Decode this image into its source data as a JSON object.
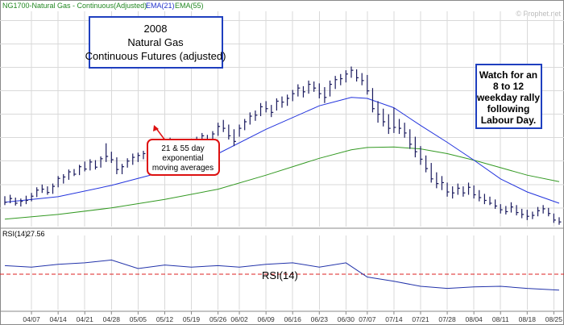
{
  "header": {
    "symbol_label": "NG1700-Natural Gas - Continuous(Adjusted)",
    "ema21_label": "EMA(21)",
    "ema55_label": "EMA(55)",
    "watermark": "© Prophet.net"
  },
  "rsi_header": {
    "label": "RSI(14)",
    "value": "27.56"
  },
  "annotations": {
    "title_box": [
      "2008",
      "Natural Gas",
      "Continuous Futures (adjusted)"
    ],
    "ma_box": [
      "21 & 55 day",
      "exponential",
      "moving averages"
    ],
    "rally_box": [
      "Watch for an",
      "8 to 12",
      "weekday rally",
      "following",
      "Labour Day."
    ],
    "rsi_label": "RSI(14)"
  },
  "colors": {
    "price_bars": "#1a1a5e",
    "ema21": "#2233dd",
    "ema55": "#339922",
    "rsi_line": "#2233aa",
    "rsi_midline": "#dd2222",
    "title_box_border": "#1f3fbf",
    "ma_box_border": "#dd1111",
    "rally_box_border": "#1f3fbf",
    "text_green": "#228822",
    "text_blue": "#2233cc",
    "text_dark": "#000000"
  },
  "chart_data": [
    {
      "type": "ohlc",
      "title": "",
      "xlabel": "",
      "ylabel": "",
      "categories": [
        "04/07",
        "04/14",
        "04/21",
        "04/28",
        "05/05",
        "05/12",
        "05/19",
        "05/26",
        "06/02",
        "06/09",
        "06/16",
        "06/23",
        "06/30",
        "07/07",
        "07/14",
        "07/21",
        "07/28",
        "08/04",
        "08/11",
        "08/18",
        "08/25"
      ],
      "ylim": [
        36,
        82
      ],
      "grid": true,
      "bars": [
        {
          "date": "03/31",
          "high": 42.5,
          "low": 40.6,
          "close": 41.2
        },
        {
          "date": "04/01",
          "high": 42.8,
          "low": 41.0,
          "close": 42.0
        },
        {
          "date": "04/02",
          "high": 42.2,
          "low": 40.5,
          "close": 41.0
        },
        {
          "date": "04/03",
          "high": 42.0,
          "low": 40.3,
          "close": 41.4
        },
        {
          "date": "04/04",
          "high": 42.6,
          "low": 40.8,
          "close": 41.6
        },
        {
          "date": "04/07",
          "high": 43.2,
          "low": 41.4,
          "close": 42.5
        },
        {
          "date": "04/08",
          "high": 44.4,
          "low": 42.3,
          "close": 43.8
        },
        {
          "date": "04/09",
          "high": 45.0,
          "low": 43.2,
          "close": 44.0
        },
        {
          "date": "04/10",
          "high": 44.6,
          "low": 42.8,
          "close": 43.3
        },
        {
          "date": "04/11",
          "high": 45.2,
          "low": 43.0,
          "close": 44.6
        },
        {
          "date": "04/14",
          "high": 46.8,
          "low": 44.4,
          "close": 46.3
        },
        {
          "date": "04/15",
          "high": 47.2,
          "low": 45.2,
          "close": 46.6
        },
        {
          "date": "04/16",
          "high": 48.2,
          "low": 46.0,
          "close": 47.7
        },
        {
          "date": "04/17",
          "high": 48.3,
          "low": 46.8,
          "close": 47.2
        },
        {
          "date": "04/18",
          "high": 49.2,
          "low": 47.0,
          "close": 48.8
        },
        {
          "date": "04/21",
          "high": 49.9,
          "low": 47.8,
          "close": 48.3
        },
        {
          "date": "04/22",
          "high": 50.4,
          "low": 48.0,
          "close": 49.8
        },
        {
          "date": "04/23",
          "high": 50.2,
          "low": 48.2,
          "close": 48.7
        },
        {
          "date": "04/24",
          "high": 51.0,
          "low": 48.6,
          "close": 50.5
        },
        {
          "date": "04/25",
          "high": 53.8,
          "low": 49.8,
          "close": 51.0
        },
        {
          "date": "04/28",
          "high": 52.0,
          "low": 49.6,
          "close": 50.3
        },
        {
          "date": "04/29",
          "high": 50.8,
          "low": 47.2,
          "close": 48.2
        },
        {
          "date": "04/30",
          "high": 49.4,
          "low": 47.2,
          "close": 48.8
        },
        {
          "date": "05/01",
          "high": 50.6,
          "low": 48.6,
          "close": 50.0
        },
        {
          "date": "05/02",
          "high": 51.6,
          "low": 49.2,
          "close": 50.8
        },
        {
          "date": "05/05",
          "high": 51.8,
          "low": 49.8,
          "close": 51.2
        },
        {
          "date": "05/06",
          "high": 52.2,
          "low": 50.4,
          "close": 51.6
        },
        {
          "date": "05/07",
          "high": 53.0,
          "low": 51.0,
          "close": 52.5
        },
        {
          "date": "05/08",
          "high": 53.2,
          "low": 51.4,
          "close": 52.2
        },
        {
          "date": "05/09",
          "high": 53.8,
          "low": 51.6,
          "close": 53.3
        },
        {
          "date": "05/12",
          "high": 54.2,
          "low": 52.3,
          "close": 53.6
        },
        {
          "date": "05/13",
          "high": 55.0,
          "low": 52.8,
          "close": 53.8
        },
        {
          "date": "05/14",
          "high": 54.6,
          "low": 52.4,
          "close": 53.0
        },
        {
          "date": "05/15",
          "high": 53.8,
          "low": 49.4,
          "close": 50.8
        },
        {
          "date": "05/16",
          "high": 52.2,
          "low": 49.8,
          "close": 51.6
        },
        {
          "date": "05/19",
          "high": 53.8,
          "low": 51.2,
          "close": 53.2
        },
        {
          "date": "05/20",
          "high": 55.2,
          "low": 52.8,
          "close": 54.6
        },
        {
          "date": "05/21",
          "high": 56.0,
          "low": 54.0,
          "close": 55.4
        },
        {
          "date": "05/22",
          "high": 55.6,
          "low": 53.8,
          "close": 54.6
        },
        {
          "date": "05/23",
          "high": 56.4,
          "low": 54.2,
          "close": 55.8
        },
        {
          "date": "05/27",
          "high": 58.2,
          "low": 55.4,
          "close": 57.4
        },
        {
          "date": "05/28",
          "high": 58.8,
          "low": 56.2,
          "close": 57.0
        },
        {
          "date": "05/29",
          "high": 57.8,
          "low": 54.6,
          "close": 55.4
        },
        {
          "date": "05/30",
          "high": 56.8,
          "low": 53.2,
          "close": 54.2
        },
        {
          "date": "06/02",
          "high": 57.8,
          "low": 55.2,
          "close": 57.0
        },
        {
          "date": "06/03",
          "high": 59.0,
          "low": 56.6,
          "close": 58.4
        },
        {
          "date": "06/04",
          "high": 60.4,
          "low": 57.8,
          "close": 59.6
        },
        {
          "date": "06/05",
          "high": 60.8,
          "low": 58.6,
          "close": 59.8
        },
        {
          "date": "06/06",
          "high": 62.4,
          "low": 59.6,
          "close": 61.6
        },
        {
          "date": "06/09",
          "high": 62.8,
          "low": 60.4,
          "close": 61.2
        },
        {
          "date": "06/10",
          "high": 62.0,
          "low": 59.4,
          "close": 60.4
        },
        {
          "date": "06/11",
          "high": 63.4,
          "low": 60.8,
          "close": 62.8
        },
        {
          "date": "06/12",
          "high": 63.8,
          "low": 61.4,
          "close": 62.6
        },
        {
          "date": "06/13",
          "high": 64.2,
          "low": 61.8,
          "close": 63.4
        },
        {
          "date": "06/16",
          "high": 65.2,
          "low": 62.8,
          "close": 64.4
        },
        {
          "date": "06/17",
          "high": 66.4,
          "low": 63.8,
          "close": 65.6
        },
        {
          "date": "06/18",
          "high": 66.0,
          "low": 63.6,
          "close": 64.8
        },
        {
          "date": "06/19",
          "high": 67.2,
          "low": 64.4,
          "close": 66.4
        },
        {
          "date": "06/20",
          "high": 67.0,
          "low": 64.8,
          "close": 65.6
        },
        {
          "date": "06/23",
          "high": 66.6,
          "low": 63.4,
          "close": 64.4
        },
        {
          "date": "06/24",
          "high": 65.8,
          "low": 62.4,
          "close": 63.6
        },
        {
          "date": "06/25",
          "high": 67.2,
          "low": 63.8,
          "close": 66.4
        },
        {
          "date": "06/26",
          "high": 68.2,
          "low": 65.4,
          "close": 67.4
        },
        {
          "date": "06/27",
          "high": 68.6,
          "low": 66.2,
          "close": 67.6
        },
        {
          "date": "06/30",
          "high": 69.4,
          "low": 66.8,
          "close": 68.6
        },
        {
          "date": "07/01",
          "high": 70.2,
          "low": 67.8,
          "close": 69.4
        },
        {
          "date": "07/02",
          "high": 69.6,
          "low": 67.0,
          "close": 67.8
        },
        {
          "date": "07/03",
          "high": 68.8,
          "low": 66.2,
          "close": 67.2
        },
        {
          "date": "07/07",
          "high": 68.4,
          "low": 64.2,
          "close": 65.0
        },
        {
          "date": "07/08",
          "high": 65.6,
          "low": 60.4,
          "close": 61.2
        },
        {
          "date": "07/09",
          "high": 62.8,
          "low": 58.2,
          "close": 60.0
        },
        {
          "date": "07/10",
          "high": 61.2,
          "low": 57.4,
          "close": 58.4
        },
        {
          "date": "07/11",
          "high": 60.0,
          "low": 55.8,
          "close": 57.0
        },
        {
          "date": "07/14",
          "high": 61.4,
          "low": 56.0,
          "close": 57.2
        },
        {
          "date": "07/15",
          "high": 59.0,
          "low": 55.8,
          "close": 57.0
        },
        {
          "date": "07/16",
          "high": 58.2,
          "low": 55.0,
          "close": 56.0
        },
        {
          "date": "07/17",
          "high": 56.8,
          "low": 52.6,
          "close": 53.6
        },
        {
          "date": "07/18",
          "high": 55.2,
          "low": 50.8,
          "close": 52.0
        },
        {
          "date": "07/21",
          "high": 53.2,
          "low": 49.2,
          "close": 50.4
        },
        {
          "date": "07/22",
          "high": 51.2,
          "low": 47.6,
          "close": 48.4
        },
        {
          "date": "07/23",
          "high": 49.6,
          "low": 45.4,
          "close": 46.2
        },
        {
          "date": "07/24",
          "high": 47.6,
          "low": 44.2,
          "close": 45.2
        },
        {
          "date": "07/25",
          "high": 46.8,
          "low": 43.8,
          "close": 45.4
        },
        {
          "date": "07/28",
          "high": 45.4,
          "low": 42.4,
          "close": 43.4
        },
        {
          "date": "07/29",
          "high": 44.6,
          "low": 42.0,
          "close": 43.2
        },
        {
          "date": "07/30",
          "high": 45.2,
          "low": 42.8,
          "close": 44.2
        },
        {
          "date": "07/31",
          "high": 44.6,
          "low": 42.4,
          "close": 43.2
        },
        {
          "date": "08/01",
          "high": 45.4,
          "low": 42.8,
          "close": 44.4
        },
        {
          "date": "08/04",
          "high": 44.8,
          "low": 42.0,
          "close": 42.8
        },
        {
          "date": "08/05",
          "high": 43.8,
          "low": 41.4,
          "close": 42.2
        },
        {
          "date": "08/06",
          "high": 43.0,
          "low": 40.8,
          "close": 41.6
        },
        {
          "date": "08/07",
          "high": 42.4,
          "low": 40.6,
          "close": 41.0
        },
        {
          "date": "08/08",
          "high": 41.8,
          "low": 39.8,
          "close": 40.4
        },
        {
          "date": "08/11",
          "high": 40.8,
          "low": 38.8,
          "close": 39.6
        },
        {
          "date": "08/12",
          "high": 40.4,
          "low": 38.6,
          "close": 39.2
        },
        {
          "date": "08/13",
          "high": 41.2,
          "low": 39.0,
          "close": 40.2
        },
        {
          "date": "08/14",
          "high": 40.6,
          "low": 38.4,
          "close": 39.0
        },
        {
          "date": "08/15",
          "high": 39.8,
          "low": 37.8,
          "close": 38.6
        },
        {
          "date": "08/18",
          "high": 39.6,
          "low": 37.4,
          "close": 38.2
        },
        {
          "date": "08/19",
          "high": 39.2,
          "low": 37.6,
          "close": 38.4
        },
        {
          "date": "08/20",
          "high": 40.2,
          "low": 38.2,
          "close": 39.4
        },
        {
          "date": "08/21",
          "high": 40.6,
          "low": 38.8,
          "close": 39.8
        },
        {
          "date": "08/22",
          "high": 40.0,
          "low": 38.2,
          "close": 38.8
        },
        {
          "date": "08/25",
          "high": 38.8,
          "low": 36.8,
          "close": 37.4
        },
        {
          "date": "08/26",
          "high": 38.0,
          "low": 36.4,
          "close": 37.0
        }
      ],
      "series": [
        {
          "name": "EMA(21)",
          "x": [
            "03/31",
            "04/14",
            "04/28",
            "05/12",
            "05/26",
            "06/09",
            "06/23",
            "07/01",
            "07/07",
            "07/14",
            "07/21",
            "07/28",
            "08/04",
            "08/11",
            "08/18",
            "08/26"
          ],
          "values": [
            41.2,
            42.4,
            44.8,
            47.8,
            51.6,
            56.8,
            61.8,
            63.6,
            63.4,
            61.4,
            57.6,
            54.0,
            50.2,
            46.2,
            43.4,
            41.0
          ]
        },
        {
          "name": "EMA(55)",
          "x": [
            "03/31",
            "04/14",
            "04/28",
            "05/12",
            "05/26",
            "06/09",
            "06/23",
            "07/01",
            "07/07",
            "07/14",
            "07/21",
            "07/28",
            "08/04",
            "08/11",
            "08/18",
            "08/26"
          ],
          "values": [
            37.6,
            38.6,
            40.0,
            41.8,
            44.0,
            47.0,
            50.6,
            52.4,
            52.9,
            53.0,
            52.6,
            51.6,
            50.2,
            48.6,
            47.0,
            45.6
          ]
        }
      ]
    },
    {
      "type": "line",
      "title": "",
      "series": [
        {
          "name": "RSI(14)",
          "x": [
            "03/31",
            "04/07",
            "04/14",
            "04/21",
            "04/28",
            "05/05",
            "05/12",
            "05/19",
            "05/26",
            "06/02",
            "06/09",
            "06/16",
            "06/23",
            "06/30",
            "07/07",
            "07/14",
            "07/21",
            "07/28",
            "08/04",
            "08/11",
            "08/18",
            "08/26"
          ],
          "values": [
            62,
            60,
            64,
            66,
            70,
            58,
            63,
            60,
            62,
            60,
            64,
            66,
            60,
            66,
            46,
            40,
            33,
            30,
            32,
            33,
            30,
            27.56
          ]
        }
      ],
      "reference_line": 50,
      "ylim": [
        0,
        100
      ]
    }
  ]
}
